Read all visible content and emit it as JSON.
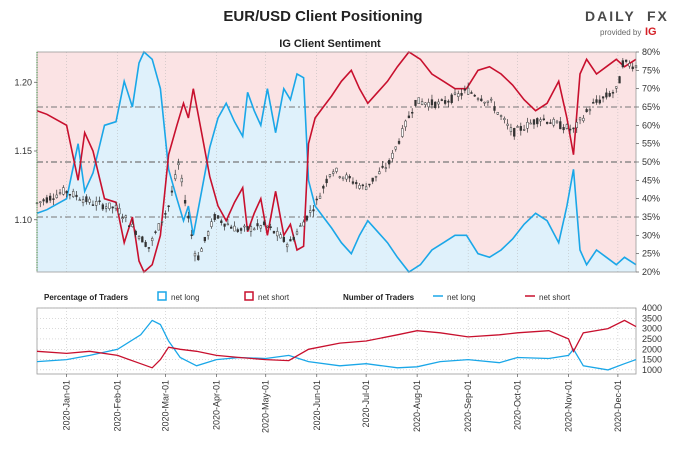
{
  "header": {
    "title": "EUR/USD Client Positioning",
    "subtitle": "IG Client Sentiment"
  },
  "logo": {
    "name": "DAILY",
    "fx": "FX",
    "provided": "provided by",
    "ig": "IG"
  },
  "colors": {
    "net_long": "#1aa7e8",
    "net_short": "#c8102e",
    "price": "#333333",
    "long_fill": "#dff1fb",
    "short_fill": "#fbe3e4",
    "grid": "#b5b5b5"
  },
  "legend": {
    "pct_title": "Percentage of Traders",
    "pct_long": "net long",
    "pct_short": "net short",
    "num_title": "Number of Traders",
    "num_long": "net long",
    "num_short": "net short"
  },
  "chart_data": [
    {
      "type": "line",
      "title": "IG Client Sentiment",
      "x_ticks": [
        "2020-Jan-01",
        "2020-Feb-01",
        "2020-Mar-01",
        "2020-Apr-01",
        "2020-May-01",
        "2020-Jun-01",
        "2020-Jul-01",
        "2020-Aug-01",
        "2020-Sep-01",
        "2020-Oct-01",
        "2020-Nov-01",
        "2020-Dec-01"
      ],
      "x_range": [
        "2019-12-14",
        "2020-12-12"
      ],
      "y_left_label_ticks": [
        "1.10",
        "1.15",
        "1.20"
      ],
      "y_left_range": [
        1.062,
        1.222
      ],
      "y_right_ticks": [
        "20%",
        "25%",
        "30%",
        "35%",
        "40%",
        "45%",
        "50%",
        "55%",
        "60%",
        "65%",
        "70%",
        "75%",
        "80%"
      ],
      "y_right_range": [
        20,
        80
      ],
      "reference_lines_pct": [
        35,
        50,
        65
      ],
      "net_long_pct": [
        [
          "2019-12-14",
          36
        ],
        [
          "2019-12-20",
          37
        ],
        [
          "2020-01-01",
          40
        ],
        [
          "2020-01-08",
          55
        ],
        [
          "2020-01-12",
          42
        ],
        [
          "2020-01-17",
          47
        ],
        [
          "2020-01-24",
          60
        ],
        [
          "2020-01-31",
          61
        ],
        [
          "2020-02-05",
          72
        ],
        [
          "2020-02-10",
          65
        ],
        [
          "2020-02-14",
          77
        ],
        [
          "2020-02-17",
          80
        ],
        [
          "2020-02-22",
          78
        ],
        [
          "2020-02-27",
          70
        ],
        [
          "2020-03-03",
          48
        ],
        [
          "2020-03-08",
          40
        ],
        [
          "2020-03-12",
          34
        ],
        [
          "2020-03-15",
          38
        ],
        [
          "2020-03-18",
          30
        ],
        [
          "2020-03-23",
          42
        ],
        [
          "2020-03-28",
          54
        ],
        [
          "2020-04-02",
          62
        ],
        [
          "2020-04-07",
          66
        ],
        [
          "2020-04-12",
          61
        ],
        [
          "2020-04-17",
          57
        ],
        [
          "2020-04-20",
          69
        ],
        [
          "2020-04-24",
          64
        ],
        [
          "2020-04-28",
          60
        ],
        [
          "2020-05-02",
          70
        ],
        [
          "2020-05-07",
          58
        ],
        [
          "2020-05-12",
          70
        ],
        [
          "2020-05-16",
          67
        ],
        [
          "2020-05-20",
          74
        ],
        [
          "2020-05-24",
          73
        ],
        [
          "2020-05-27",
          45
        ],
        [
          "2020-05-31",
          38
        ],
        [
          "2020-06-05",
          35
        ],
        [
          "2020-06-10",
          32
        ],
        [
          "2020-06-16",
          28
        ],
        [
          "2020-06-22",
          25
        ],
        [
          "2020-06-27",
          30
        ],
        [
          "2020-07-02",
          34
        ],
        [
          "2020-07-08",
          31
        ],
        [
          "2020-07-14",
          28
        ],
        [
          "2020-07-20",
          24
        ],
        [
          "2020-07-27",
          20
        ],
        [
          "2020-08-03",
          22
        ],
        [
          "2020-08-10",
          26
        ],
        [
          "2020-08-17",
          28
        ],
        [
          "2020-08-24",
          30
        ],
        [
          "2020-08-31",
          30
        ],
        [
          "2020-09-07",
          25
        ],
        [
          "2020-09-14",
          24
        ],
        [
          "2020-09-21",
          26
        ],
        [
          "2020-09-28",
          29
        ],
        [
          "2020-10-05",
          33
        ],
        [
          "2020-10-12",
          36
        ],
        [
          "2020-10-19",
          34
        ],
        [
          "2020-10-26",
          28
        ],
        [
          "2020-10-31",
          38
        ],
        [
          "2020-11-04",
          48
        ],
        [
          "2020-11-08",
          26
        ],
        [
          "2020-11-12",
          22
        ],
        [
          "2020-11-18",
          26
        ],
        [
          "2020-11-24",
          24
        ],
        [
          "2020-11-30",
          22
        ],
        [
          "2020-12-05",
          24
        ],
        [
          "2020-12-12",
          22
        ]
      ],
      "net_short_pct": [
        [
          "2019-12-14",
          64
        ],
        [
          "2019-12-20",
          63
        ],
        [
          "2020-01-01",
          60
        ],
        [
          "2020-01-08",
          45
        ],
        [
          "2020-01-12",
          58
        ],
        [
          "2020-01-17",
          53
        ],
        [
          "2020-01-24",
          40
        ],
        [
          "2020-01-31",
          39
        ],
        [
          "2020-02-05",
          28
        ],
        [
          "2020-02-10",
          35
        ],
        [
          "2020-02-14",
          23
        ],
        [
          "2020-02-17",
          20
        ],
        [
          "2020-02-22",
          22
        ],
        [
          "2020-02-27",
          30
        ],
        [
          "2020-03-03",
          52
        ],
        [
          "2020-03-08",
          60
        ],
        [
          "2020-03-12",
          66
        ],
        [
          "2020-03-15",
          62
        ],
        [
          "2020-03-18",
          70
        ],
        [
          "2020-03-23",
          58
        ],
        [
          "2020-03-28",
          46
        ],
        [
          "2020-04-02",
          38
        ],
        [
          "2020-04-07",
          34
        ],
        [
          "2020-04-12",
          39
        ],
        [
          "2020-04-17",
          43
        ],
        [
          "2020-04-20",
          31
        ],
        [
          "2020-04-24",
          36
        ],
        [
          "2020-04-28",
          40
        ],
        [
          "2020-05-02",
          30
        ],
        [
          "2020-05-07",
          42
        ],
        [
          "2020-05-12",
          30
        ],
        [
          "2020-05-16",
          33
        ],
        [
          "2020-05-20",
          26
        ],
        [
          "2020-05-24",
          27
        ],
        [
          "2020-05-27",
          55
        ],
        [
          "2020-05-31",
          62
        ],
        [
          "2020-06-05",
          65
        ],
        [
          "2020-06-10",
          68
        ],
        [
          "2020-06-16",
          72
        ],
        [
          "2020-06-22",
          75
        ],
        [
          "2020-06-27",
          70
        ],
        [
          "2020-07-02",
          66
        ],
        [
          "2020-07-08",
          69
        ],
        [
          "2020-07-14",
          72
        ],
        [
          "2020-07-20",
          76
        ],
        [
          "2020-07-27",
          80
        ],
        [
          "2020-08-03",
          78
        ],
        [
          "2020-08-10",
          74
        ],
        [
          "2020-08-17",
          72
        ],
        [
          "2020-08-24",
          70
        ],
        [
          "2020-08-31",
          70
        ],
        [
          "2020-09-07",
          75
        ],
        [
          "2020-09-14",
          76
        ],
        [
          "2020-09-21",
          74
        ],
        [
          "2020-09-28",
          71
        ],
        [
          "2020-10-05",
          67
        ],
        [
          "2020-10-12",
          64
        ],
        [
          "2020-10-19",
          66
        ],
        [
          "2020-10-26",
          72
        ],
        [
          "2020-10-31",
          62
        ],
        [
          "2020-11-04",
          52
        ],
        [
          "2020-11-08",
          74
        ],
        [
          "2020-11-12",
          78
        ],
        [
          "2020-11-18",
          74
        ],
        [
          "2020-11-24",
          76
        ],
        [
          "2020-11-30",
          78
        ],
        [
          "2020-12-05",
          76
        ],
        [
          "2020-12-12",
          78
        ]
      ],
      "price_eurusd": [
        [
          "2019-12-14",
          1.112
        ],
        [
          "2019-12-31",
          1.121
        ],
        [
          "2020-01-15",
          1.113
        ],
        [
          "2020-02-01",
          1.108
        ],
        [
          "2020-02-20",
          1.08
        ],
        [
          "2020-03-03",
          1.11
        ],
        [
          "2020-03-09",
          1.14
        ],
        [
          "2020-03-20",
          1.07
        ],
        [
          "2020-03-31",
          1.102
        ],
        [
          "2020-04-15",
          1.092
        ],
        [
          "2020-05-01",
          1.096
        ],
        [
          "2020-05-15",
          1.082
        ],
        [
          "2020-06-01",
          1.113
        ],
        [
          "2020-06-10",
          1.137
        ],
        [
          "2020-06-30",
          1.123
        ],
        [
          "2020-07-15",
          1.141
        ],
        [
          "2020-07-31",
          1.186
        ],
        [
          "2020-08-15",
          1.184
        ],
        [
          "2020-09-01",
          1.194
        ],
        [
          "2020-09-15",
          1.185
        ],
        [
          "2020-09-28",
          1.163
        ],
        [
          "2020-10-15",
          1.174
        ],
        [
          "2020-11-04",
          1.165
        ],
        [
          "2020-11-15",
          1.183
        ],
        [
          "2020-12-01",
          1.195
        ],
        [
          "2020-12-04",
          1.214
        ],
        [
          "2020-12-12",
          1.212
        ]
      ]
    },
    {
      "type": "line",
      "title": "Number of Traders",
      "y_ticks": [
        "1000",
        "1500",
        "2000",
        "2500",
        "3000",
        "3500",
        "4000"
      ],
      "y_range": [
        800,
        4000
      ],
      "net_long": [
        [
          "2019-12-14",
          1400
        ],
        [
          "2020-01-01",
          1500
        ],
        [
          "2020-01-15",
          1700
        ],
        [
          "2020-02-01",
          2000
        ],
        [
          "2020-02-15",
          2700
        ],
        [
          "2020-02-22",
          3400
        ],
        [
          "2020-02-27",
          3200
        ],
        [
          "2020-03-03",
          2400
        ],
        [
          "2020-03-10",
          1600
        ],
        [
          "2020-03-20",
          1200
        ],
        [
          "2020-04-01",
          1500
        ],
        [
          "2020-04-15",
          1600
        ],
        [
          "2020-05-01",
          1550
        ],
        [
          "2020-05-15",
          1700
        ],
        [
          "2020-05-27",
          1400
        ],
        [
          "2020-06-15",
          1200
        ],
        [
          "2020-07-01",
          1300
        ],
        [
          "2020-07-20",
          1100
        ],
        [
          "2020-08-01",
          1150
        ],
        [
          "2020-08-15",
          1400
        ],
        [
          "2020-09-01",
          1500
        ],
        [
          "2020-09-20",
          1350
        ],
        [
          "2020-10-01",
          1600
        ],
        [
          "2020-10-20",
          1550
        ],
        [
          "2020-11-01",
          1700
        ],
        [
          "2020-11-04",
          2000
        ],
        [
          "2020-11-10",
          1200
        ],
        [
          "2020-11-25",
          1000
        ],
        [
          "2020-12-05",
          1300
        ],
        [
          "2020-12-12",
          1500
        ]
      ],
      "net_short": [
        [
          "2019-12-14",
          1900
        ],
        [
          "2020-01-01",
          1800
        ],
        [
          "2020-01-15",
          1900
        ],
        [
          "2020-02-01",
          1700
        ],
        [
          "2020-02-15",
          1300
        ],
        [
          "2020-02-22",
          1100
        ],
        [
          "2020-02-27",
          1500
        ],
        [
          "2020-03-03",
          2100
        ],
        [
          "2020-03-10",
          2000
        ],
        [
          "2020-03-20",
          1900
        ],
        [
          "2020-04-01",
          1700
        ],
        [
          "2020-04-15",
          1600
        ],
        [
          "2020-05-01",
          1500
        ],
        [
          "2020-05-15",
          1450
        ],
        [
          "2020-05-27",
          2000
        ],
        [
          "2020-06-15",
          2300
        ],
        [
          "2020-07-01",
          2400
        ],
        [
          "2020-07-20",
          2700
        ],
        [
          "2020-08-01",
          2900
        ],
        [
          "2020-08-15",
          2800
        ],
        [
          "2020-09-01",
          2600
        ],
        [
          "2020-09-20",
          2700
        ],
        [
          "2020-10-01",
          2800
        ],
        [
          "2020-10-20",
          2900
        ],
        [
          "2020-11-01",
          2500
        ],
        [
          "2020-11-04",
          1900
        ],
        [
          "2020-11-10",
          2800
        ],
        [
          "2020-11-25",
          3000
        ],
        [
          "2020-12-05",
          3400
        ],
        [
          "2020-12-12",
          3100
        ]
      ]
    }
  ]
}
